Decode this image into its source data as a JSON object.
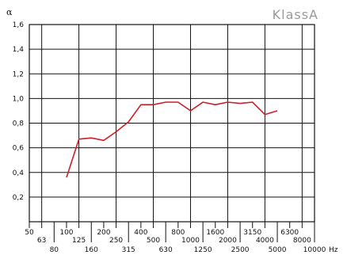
{
  "brand": "KlassA",
  "chart_data": {
    "type": "line",
    "ylabel": "α",
    "xlabel_unit": "Hz",
    "ylim": [
      0,
      1.6
    ],
    "y_ticks": [
      "0,2",
      "0,4",
      "0,6",
      "0,8",
      "1,0",
      "1,2",
      "1,4",
      "1,6"
    ],
    "y_tick_values": [
      0.2,
      0.4,
      0.6,
      0.8,
      1.0,
      1.2,
      1.4,
      1.6
    ],
    "x_ticks": [
      "50",
      "63",
      "80",
      "100",
      "125",
      "160",
      "200",
      "250",
      "315",
      "400",
      "500",
      "630",
      "800",
      "1000",
      "1250",
      "1600",
      "2000",
      "2500",
      "3150",
      "4000",
      "5000",
      "6300",
      "8000",
      "10000"
    ],
    "grid": true,
    "series": [
      {
        "color": "#cc1f2a",
        "x": [
          "100",
          "125",
          "160",
          "200",
          "250",
          "315",
          "400",
          "500",
          "630",
          "800",
          "1000",
          "1250",
          "1600",
          "2000",
          "2500",
          "3150",
          "4000",
          "5000"
        ],
        "values": [
          0.36,
          0.67,
          0.68,
          0.66,
          0.73,
          0.81,
          0.95,
          0.95,
          0.97,
          0.97,
          0.9,
          0.97,
          0.95,
          0.97,
          0.96,
          0.97,
          0.87,
          0.9
        ]
      }
    ]
  }
}
